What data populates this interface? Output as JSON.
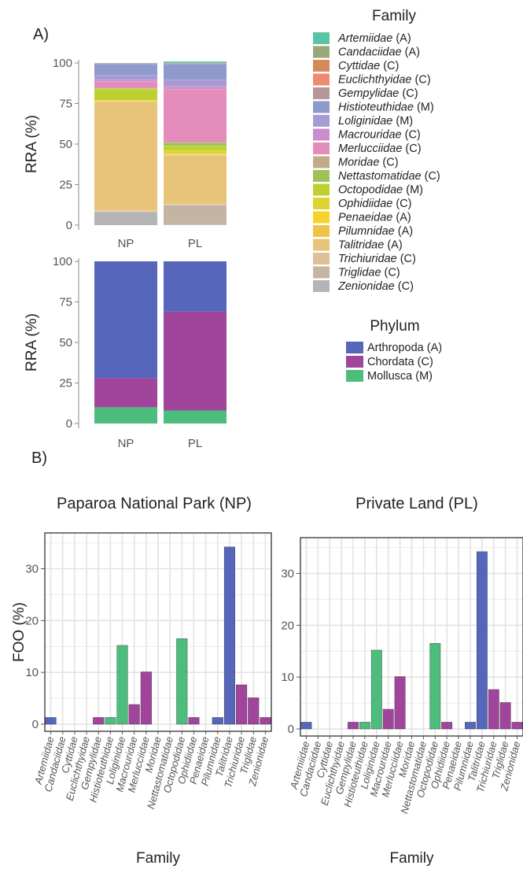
{
  "panels": {
    "a_label": "A)",
    "b_label": "B)"
  },
  "colors": {
    "arthropoda": "#5566bb",
    "chordata": "#a0449c",
    "mollusca": "#4cbd7d"
  },
  "legends": {
    "family": {
      "title": "Family",
      "items": [
        {
          "name": "Artemiidae",
          "code": " (A)",
          "color": "#5cc4a2"
        },
        {
          "name": "Candaciidae",
          "code": " (A)",
          "color": "#98a87a"
        },
        {
          "name": "Cyttidae",
          "code": " (C)",
          "color": "#d6895c"
        },
        {
          "name": "Euclichthyidae",
          "code": " (C)",
          "color": "#ec8a72"
        },
        {
          "name": "Gempylidae",
          "code": " (C)",
          "color": "#b69696"
        },
        {
          "name": "Histioteuthidae",
          "code": " (M)",
          "color": "#8d9acb"
        },
        {
          "name": "Loliginidae",
          "code": " (M)",
          "color": "#a99ad4"
        },
        {
          "name": "Macrouridae",
          "code": " (C)",
          "color": "#cc8ccc"
        },
        {
          "name": "Merlucciidae",
          "code": " (C)",
          "color": "#e48cbc"
        },
        {
          "name": "Moridae",
          "code": " (C)",
          "color": "#c3aa8a"
        },
        {
          "name": "Nettastomatidae",
          "code": " (C)",
          "color": "#9cc25a"
        },
        {
          "name": "Octopodidae",
          "code": " (M)",
          "color": "#bdd030"
        },
        {
          "name": "Ophidiidae",
          "code": " (C)",
          "color": "#dcd432"
        },
        {
          "name": "Penaeidae",
          "code": " (A)",
          "color": "#f6d22a"
        },
        {
          "name": "Pilumnidae",
          "code": " (A)",
          "color": "#ecc448"
        },
        {
          "name": "Talitridae",
          "code": " (A)",
          "color": "#e8c47a"
        },
        {
          "name": "Trichiuridae",
          "code": " (C)",
          "color": "#dcc098"
        },
        {
          "name": "Triglidae",
          "code": " (C)",
          "color": "#c4b4a2"
        },
        {
          "name": "Zenionidae",
          "code": " (C)",
          "color": "#b4b4b4"
        }
      ]
    },
    "phylum": {
      "title": "Phylum",
      "items": [
        {
          "name": "Arthropoda (A)",
          "color": "#5566bb"
        },
        {
          "name": "Chordata (C)",
          "color": "#a0449c"
        },
        {
          "name": "Mollusca (M)",
          "color": "#4cbd7d"
        }
      ]
    }
  },
  "chart_data": [
    {
      "id": "family_rra",
      "type": "bar",
      "stacked": true,
      "ylabel": "RRA (%)",
      "ylim": [
        0,
        100
      ],
      "yticks": [
        0,
        25,
        50,
        75,
        100
      ],
      "categories": [
        "NP",
        "PL"
      ],
      "series": [
        {
          "name": "Zenionidae",
          "values": [
            8,
            0.5
          ]
        },
        {
          "name": "Triglidae",
          "values": [
            0.5,
            12
          ]
        },
        {
          "name": "Trichiuridae",
          "values": [
            0.5,
            0.5
          ]
        },
        {
          "name": "Talitridae",
          "values": [
            67,
            30
          ]
        },
        {
          "name": "Pilumnidae",
          "values": [
            0.5,
            0.5
          ]
        },
        {
          "name": "Penaeidae",
          "values": [
            0.5,
            0.5
          ]
        },
        {
          "name": "Ophidiidae",
          "values": [
            0,
            2
          ]
        },
        {
          "name": "Octopodidae",
          "values": [
            7,
            3
          ]
        },
        {
          "name": "Nettastomatidae",
          "values": [
            0.5,
            2
          ]
        },
        {
          "name": "Moridae",
          "values": [
            0,
            0
          ]
        },
        {
          "name": "Merlucciidae",
          "values": [
            4,
            33
          ]
        },
        {
          "name": "Macrouridae",
          "values": [
            1,
            1.5
          ]
        },
        {
          "name": "Loliginidae",
          "values": [
            3,
            4
          ]
        },
        {
          "name": "Histioteuthidae",
          "values": [
            7,
            10
          ]
        },
        {
          "name": "Gempylidae",
          "values": [
            0.5,
            0.5
          ]
        },
        {
          "name": "Artemiidae",
          "values": [
            0,
            1
          ]
        }
      ]
    },
    {
      "id": "phylum_rra",
      "type": "bar",
      "stacked": true,
      "ylabel": "RRA (%)",
      "ylim": [
        0,
        100
      ],
      "yticks": [
        0,
        25,
        50,
        75,
        100
      ],
      "categories": [
        "NP",
        "PL"
      ],
      "series": [
        {
          "name": "Mollusca (M)",
          "values": [
            10,
            8
          ]
        },
        {
          "name": "Chordata (C)",
          "values": [
            18,
            61
          ]
        },
        {
          "name": "Arthropoda (A)",
          "values": [
            72,
            31
          ]
        }
      ]
    },
    {
      "id": "foo_np",
      "type": "bar",
      "title": "Paparoa National Park (NP)",
      "ylabel": "FOO (%)",
      "xlabel": "Family",
      "ylim": [
        0,
        36
      ],
      "yticks": [
        0,
        10,
        20,
        30
      ],
      "categories": [
        "Artemiidae",
        "Candaciidae",
        "Cyttidae",
        "Euclichthyidae",
        "Gempylidae",
        "Histioteuthidae",
        "Loliginidae",
        "Macrouridae",
        "Merlucciidae",
        "Moridae",
        "Nettastomatidae",
        "Octopodidae",
        "Ophidiidae",
        "Penaeidae",
        "Pilumnidae",
        "Talitridae",
        "Trichiuridae",
        "Triglidae",
        "Zenionidae"
      ],
      "values": [
        1.3,
        0,
        0,
        0,
        1.3,
        1.3,
        15.2,
        3.8,
        10.1,
        0,
        0,
        16.5,
        1.3,
        0,
        1.3,
        34.2,
        7.6,
        5.1,
        1.3
      ],
      "phylum": [
        "A",
        "A",
        "C",
        "C",
        "C",
        "M",
        "M",
        "C",
        "C",
        "C",
        "C",
        "M",
        "C",
        "A",
        "A",
        "A",
        "C",
        "C",
        "C"
      ]
    },
    {
      "id": "foo_pl",
      "type": "bar",
      "title": "Private Land (PL)",
      "xlabel": "Family",
      "ylim": [
        0,
        36
      ],
      "yticks": [
        0,
        10,
        20,
        30
      ],
      "categories": [
        "Artemiidae",
        "Candaciidae",
        "Cyttidae",
        "Euclichthyidae",
        "Gempylidae",
        "Histioteuthidae",
        "Loliginidae",
        "Macrouridae",
        "Merlucciidae",
        "Moridae",
        "Nettastomatidae",
        "Octopodidae",
        "Ophidiidae",
        "Penaeidae",
        "Pilumnidae",
        "Talitridae",
        "Trichiuridae",
        "Triglidae",
        "Zenionidae"
      ],
      "values": [
        1.3,
        0,
        0,
        0,
        1.3,
        1.3,
        15.2,
        3.8,
        10.1,
        0,
        0,
        16.5,
        1.3,
        0,
        1.3,
        34.2,
        7.6,
        5.1,
        1.3
      ],
      "phylum": [
        "A",
        "A",
        "C",
        "C",
        "C",
        "M",
        "M",
        "C",
        "C",
        "C",
        "C",
        "M",
        "C",
        "A",
        "A",
        "A",
        "C",
        "C",
        "C"
      ]
    }
  ]
}
